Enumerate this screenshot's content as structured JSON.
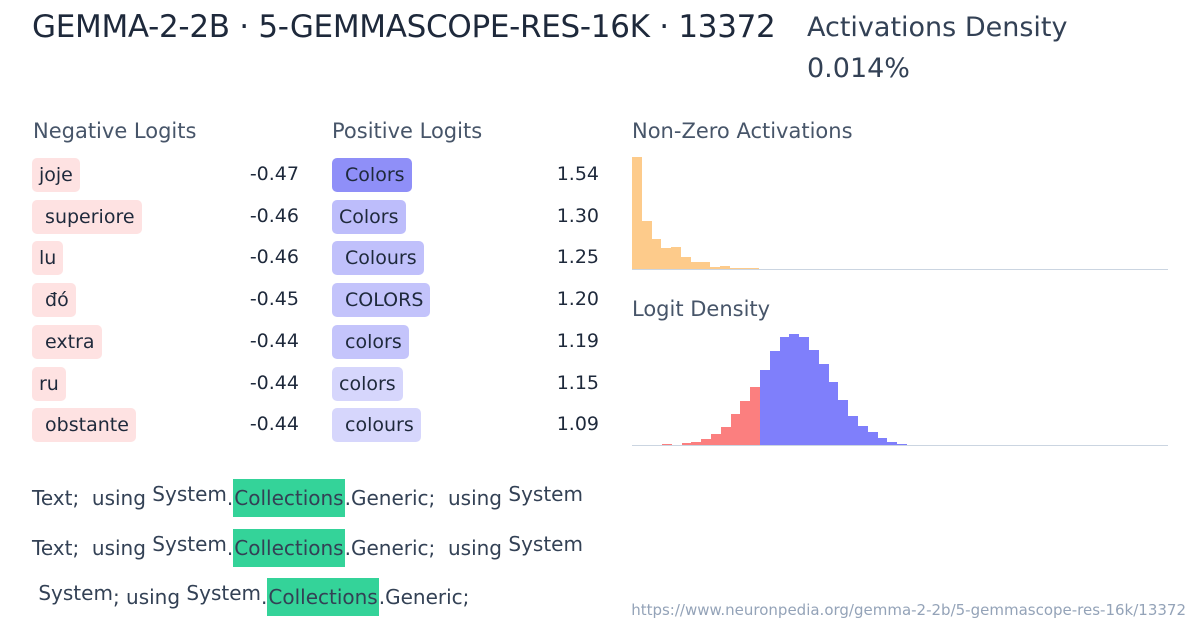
{
  "header": {
    "title": "GEMMA-2-2B · 5-GEMMASCOPE-RES-16K · 13372",
    "density_label": "Activations Density",
    "density_value": "0.014%"
  },
  "negative_logits": {
    "heading": "Negative Logits",
    "items": [
      {
        "token": "joje",
        "value": "-0.47"
      },
      {
        "token": " superiore",
        "value": "-0.46"
      },
      {
        "token": "lu",
        "value": "-0.46"
      },
      {
        "token": " đó",
        "value": "-0.45"
      },
      {
        "token": " extra",
        "value": "-0.44"
      },
      {
        "token": "ru",
        "value": "-0.44"
      },
      {
        "token": " obstante",
        "value": "-0.44"
      }
    ],
    "chip_color": "#fee2e2"
  },
  "positive_logits": {
    "heading": "Positive Logits",
    "items": [
      {
        "token": " Colors",
        "value": "1.54",
        "color": "#8f8ff8"
      },
      {
        "token": "Colors",
        "value": "1.30",
        "color": "#bdbdfb"
      },
      {
        "token": " Colours",
        "value": "1.25",
        "color": "#c0c0fb"
      },
      {
        "token": " COLORS",
        "value": "1.20",
        "color": "#c3c3fb"
      },
      {
        "token": " colors",
        "value": "1.19",
        "color": "#c4c4fb"
      },
      {
        "token": "colors",
        "value": "1.15",
        "color": "#d6d6fc"
      },
      {
        "token": " colours",
        "value": "1.09",
        "color": "#d6d6fc"
      }
    ]
  },
  "charts": {
    "activations_title": "Non-Zero Activations",
    "logit_density_title": "Logit Density"
  },
  "chart_data": [
    {
      "type": "bar",
      "title": "Non-Zero Activations",
      "color": "#fdcb8b",
      "categories": [
        "b1",
        "b2",
        "b3",
        "b4",
        "b5",
        "b6",
        "b7",
        "b8",
        "b9",
        "b10",
        "b11",
        "b12",
        "b13"
      ],
      "values": [
        100,
        43,
        27,
        19,
        20,
        11,
        6,
        6,
        2,
        3,
        1,
        1,
        1
      ],
      "xlabel": "",
      "ylabel": ""
    },
    {
      "type": "bar",
      "title": "Logit Density",
      "negative_color": "#fb7f7f",
      "positive_color": "#7f7ffb",
      "categories": [
        "b1",
        "b2",
        "b3",
        "b4",
        "b5",
        "b6",
        "b7",
        "b8",
        "b9",
        "b10",
        "b11",
        "b12",
        "b13",
        "b14",
        "b15",
        "b16",
        "b17",
        "b18",
        "b19",
        "b20",
        "b21",
        "b22",
        "b23",
        "b24",
        "b25",
        "b26"
      ],
      "values": [
        1,
        0,
        2,
        3,
        5,
        10,
        16,
        28,
        40,
        52,
        68,
        85,
        97,
        100,
        97,
        86,
        73,
        57,
        41,
        26,
        17,
        12,
        6,
        3,
        1,
        0
      ],
      "negative_bins": 10,
      "xlabel": "",
      "ylabel": ""
    }
  ],
  "snippets": [
    {
      "tokens": [
        {
          "t": "Text;",
          "hl": false,
          "up": false
        },
        {
          "t": "  using ",
          "hl": false,
          "up": false
        },
        {
          "t": "System",
          "hl": false,
          "up": true
        },
        {
          "t": ".",
          "hl": false,
          "up": false
        },
        {
          "t": "Collections",
          "hl": true,
          "up": false
        },
        {
          "t": ".Generic;",
          "hl": false,
          "up": false
        },
        {
          "t": "  using ",
          "hl": false,
          "up": false
        },
        {
          "t": "System",
          "hl": false,
          "up": true
        }
      ]
    },
    {
      "tokens": [
        {
          "t": "Text;",
          "hl": false,
          "up": false
        },
        {
          "t": "  using ",
          "hl": false,
          "up": false
        },
        {
          "t": "System",
          "hl": false,
          "up": true
        },
        {
          "t": ".",
          "hl": false,
          "up": false
        },
        {
          "t": "Collections",
          "hl": true,
          "up": false
        },
        {
          "t": ".Generic;",
          "hl": false,
          "up": false
        },
        {
          "t": "  using ",
          "hl": false,
          "up": false
        },
        {
          "t": "System",
          "hl": false,
          "up": true
        }
      ]
    },
    {
      "tokens": [
        {
          "t": " System",
          "hl": false,
          "up": true
        },
        {
          "t": "; using ",
          "hl": false,
          "up": false
        },
        {
          "t": "System",
          "hl": false,
          "up": true
        },
        {
          "t": ".",
          "hl": false,
          "up": false
        },
        {
          "t": "Collections",
          "hl": true,
          "up": false
        },
        {
          "t": ".Generic;",
          "hl": false,
          "up": false
        }
      ]
    }
  ],
  "highlight_color": "#34d399",
  "footer": {
    "url": "https://www.neuronpedia.org/gemma-2-2b/5-gemmascope-res-16k/13372"
  }
}
